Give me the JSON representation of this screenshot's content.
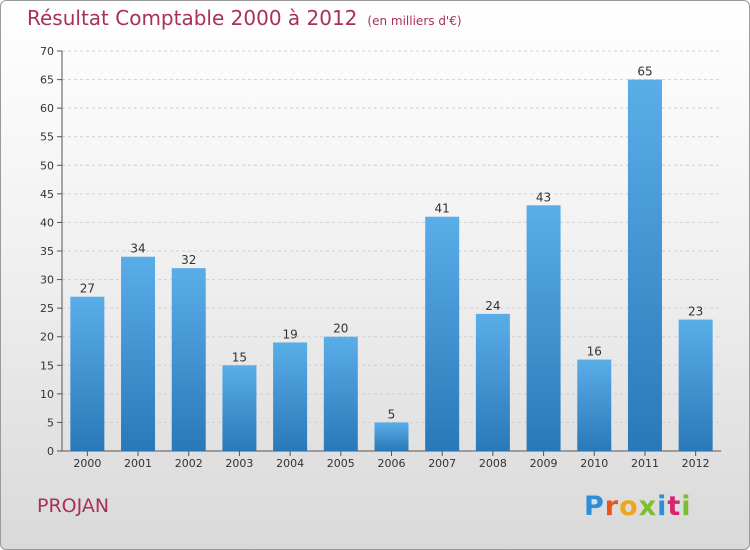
{
  "title": "Résultat Comptable 2000 à 2012",
  "unit": "(en milliers d'€)",
  "place": "PROJAN",
  "logo": {
    "p": "P",
    "r": "r",
    "o": "o",
    "x": "x",
    "i": "i",
    "t": "t",
    "i2": "i"
  },
  "chart_data": {
    "type": "bar",
    "title": "Résultat Comptable 2000 à 2012",
    "subtitle": "(en milliers d'€)",
    "xlabel": "",
    "ylabel": "",
    "categories": [
      "2000",
      "2001",
      "2002",
      "2003",
      "2004",
      "2005",
      "2006",
      "2007",
      "2008",
      "2009",
      "2010",
      "2011",
      "2012"
    ],
    "values": [
      27,
      34,
      32,
      15,
      19,
      20,
      5,
      41,
      24,
      43,
      16,
      65,
      23
    ],
    "ylim": [
      0,
      70
    ],
    "yticks": [
      0,
      5,
      10,
      15,
      20,
      25,
      30,
      35,
      40,
      45,
      50,
      55,
      60,
      65,
      70
    ],
    "grid": "horizontal dashed",
    "legend": "none",
    "bar_color": "#3a8fd3"
  }
}
